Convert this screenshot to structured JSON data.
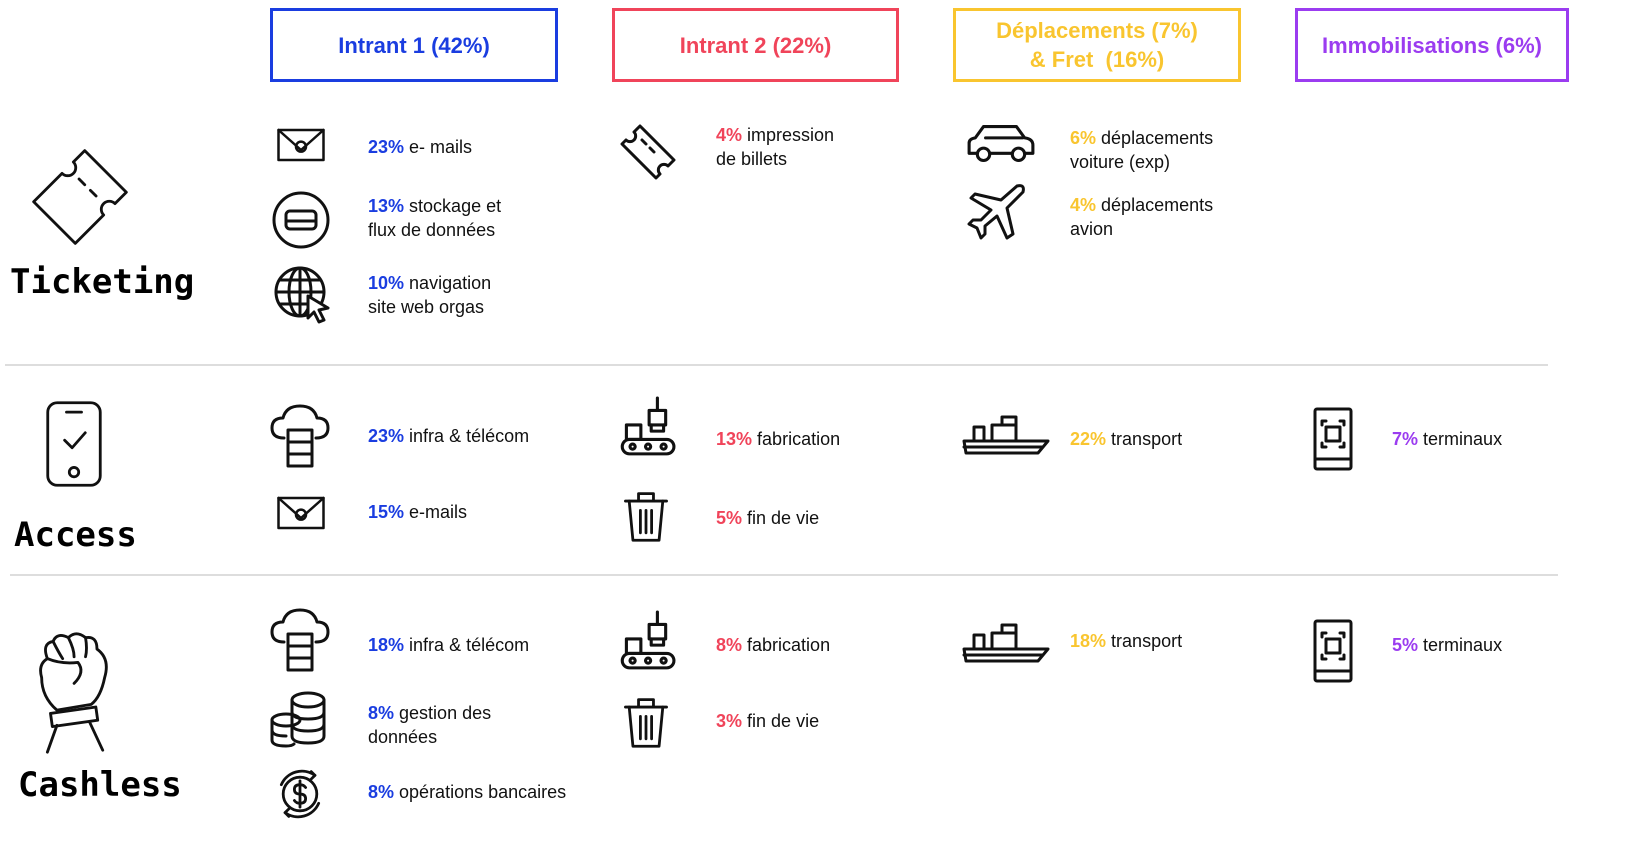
{
  "columns": [
    {
      "lines": [
        "Intrant 1 (42%)"
      ]
    },
    {
      "lines": [
        "Intrant 2 (22%)"
      ]
    },
    {
      "lines": [
        "Déplacements (7%)",
        "& Fret  (16%)"
      ]
    },
    {
      "lines": [
        "Immobilisations (6%)"
      ]
    }
  ],
  "rows": [
    {
      "label": "Ticketing",
      "cells": [
        [
          {
            "pct": "23%",
            "lines": [
              "e- mails"
            ]
          },
          {
            "pct": "13%",
            "lines": [
              "stockage et",
              "flux de données"
            ]
          },
          {
            "pct": "10%",
            "lines": [
              "navigation",
              "site web orgas"
            ]
          }
        ],
        [
          {
            "pct": "4%",
            "lines": [
              "impression",
              "de billets"
            ]
          }
        ],
        [
          {
            "pct": "6%",
            "lines": [
              "déplacements",
              "voiture (exp)"
            ]
          },
          {
            "pct": "4%",
            "lines": [
              "déplacements",
              "avion"
            ]
          }
        ],
        []
      ]
    },
    {
      "label": "Access",
      "cells": [
        [
          {
            "pct": "23%",
            "lines": [
              "infra & télécom"
            ]
          },
          {
            "pct": "15%",
            "lines": [
              "e-mails"
            ]
          }
        ],
        [
          {
            "pct": "13%",
            "lines": [
              "fabrication"
            ]
          },
          {
            "pct": "5%",
            "lines": [
              "fin de vie"
            ]
          }
        ],
        [
          {
            "pct": "22%",
            "lines": [
              "transport"
            ]
          }
        ],
        [
          {
            "pct": "7%",
            "lines": [
              "terminaux"
            ]
          }
        ]
      ]
    },
    {
      "label": "Cashless",
      "cells": [
        [
          {
            "pct": "18%",
            "lines": [
              "infra & télécom"
            ]
          },
          {
            "pct": "8%",
            "lines": [
              "gestion des",
              "données"
            ]
          },
          {
            "pct": "8%",
            "lines": [
              "opérations bancaires"
            ]
          }
        ],
        [
          {
            "pct": "8%",
            "lines": [
              "fabrication"
            ]
          },
          {
            "pct": "3%",
            "lines": [
              "fin de vie"
            ]
          }
        ],
        [
          {
            "pct": "18%",
            "lines": [
              "transport"
            ]
          }
        ],
        [
          {
            "pct": "5%",
            "lines": [
              "terminaux"
            ]
          }
        ]
      ]
    }
  ]
}
